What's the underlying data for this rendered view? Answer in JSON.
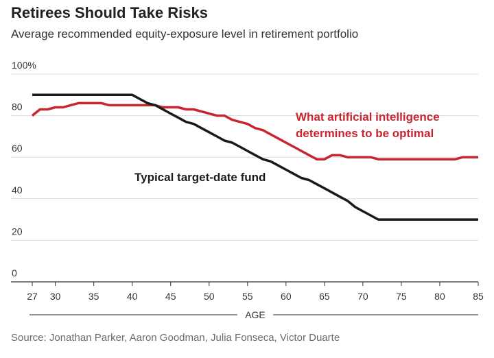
{
  "title": "Retirees Should Take Risks",
  "subtitle": "Average recommended equity-exposure level in retirement portfolio",
  "source": "Source: Jonathan Parker, Aaron Goodman, Julia Fonseca, Victor Duarte",
  "colors": {
    "ai": "#c8262e",
    "fund": "#1a1a1a",
    "grid": "#d9d9d9",
    "axis": "#333333"
  },
  "chart_data": {
    "type": "line",
    "xlabel": "AGE",
    "ylabel": "",
    "xlim": [
      27,
      85
    ],
    "ylim": [
      0,
      100
    ],
    "x_ticks": [
      27,
      30,
      35,
      40,
      45,
      50,
      55,
      60,
      65,
      70,
      75,
      80,
      85
    ],
    "y_ticks": [
      0,
      20,
      40,
      60,
      80,
      100
    ],
    "y_tick_labels": [
      "0",
      "20",
      "40",
      "60",
      "80",
      "100%"
    ],
    "grid": true,
    "series": [
      {
        "name": "What artificial intelligence determines to be optimal",
        "label_lines": [
          "What artificial intelligence",
          "determines to be optimal"
        ],
        "color": "#c8262e",
        "x": [
          27,
          28,
          29,
          30,
          31,
          32,
          33,
          34,
          35,
          36,
          37,
          38,
          39,
          40,
          41,
          42,
          43,
          44,
          45,
          46,
          47,
          48,
          49,
          50,
          51,
          52,
          53,
          54,
          55,
          56,
          57,
          58,
          59,
          60,
          61,
          62,
          63,
          64,
          65,
          66,
          67,
          68,
          69,
          70,
          71,
          72,
          73,
          74,
          75,
          76,
          77,
          78,
          79,
          80,
          81,
          82,
          83,
          84,
          85
        ],
        "values": [
          80,
          83,
          83,
          84,
          84,
          85,
          86,
          86,
          86,
          86,
          85,
          85,
          85,
          85,
          85,
          85,
          85,
          84,
          84,
          84,
          83,
          83,
          82,
          81,
          80,
          80,
          78,
          77,
          76,
          74,
          73,
          71,
          69,
          67,
          65,
          63,
          61,
          59,
          59,
          61,
          61,
          60,
          60,
          60,
          60,
          59,
          59,
          59,
          59,
          59,
          59,
          59,
          59,
          59,
          59,
          59,
          60,
          60,
          60
        ]
      },
      {
        "name": "Typical target-date fund",
        "label_lines": [
          "Typical target-date fund"
        ],
        "color": "#1a1a1a",
        "x": [
          27,
          28,
          29,
          30,
          31,
          32,
          33,
          34,
          35,
          36,
          37,
          38,
          39,
          40,
          41,
          42,
          43,
          44,
          45,
          46,
          47,
          48,
          49,
          50,
          51,
          52,
          53,
          54,
          55,
          56,
          57,
          58,
          59,
          60,
          61,
          62,
          63,
          64,
          65,
          66,
          67,
          68,
          69,
          70,
          71,
          72,
          73,
          74,
          75,
          76,
          77,
          78,
          79,
          80,
          81,
          82,
          83,
          84,
          85
        ],
        "values": [
          90,
          90,
          90,
          90,
          90,
          90,
          90,
          90,
          90,
          90,
          90,
          90,
          90,
          90,
          88,
          86,
          85,
          83,
          81,
          79,
          77,
          76,
          74,
          72,
          70,
          68,
          67,
          65,
          63,
          61,
          59,
          58,
          56,
          54,
          52,
          50,
          49,
          47,
          45,
          43,
          41,
          39,
          36,
          34,
          32,
          30,
          30,
          30,
          30,
          30,
          30,
          30,
          30,
          30,
          30,
          30,
          30,
          30,
          30
        ]
      }
    ]
  }
}
